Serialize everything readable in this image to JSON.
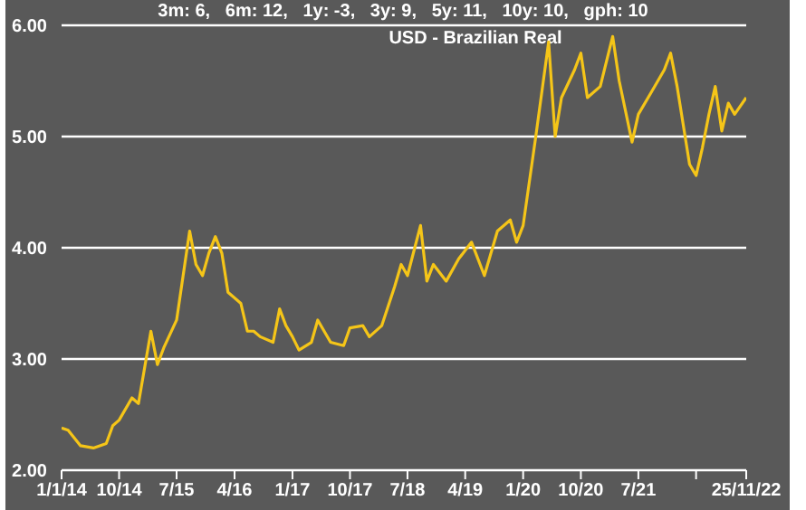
{
  "chart_data": {
    "type": "line",
    "title": "3m: 6,   6m: 12,   1y: -3,   3y: 9,   5y: 11,   10y: 10,   gph: 10",
    "subtitle": "USD - Brazilian Real",
    "x": [
      "2014-01-01",
      "2014-02-01",
      "2014-04-01",
      "2014-06-01",
      "2014-08-01",
      "2014-09-01",
      "2014-10-01",
      "2014-12-01",
      "2015-01-01",
      "2015-03-01",
      "2015-04-01",
      "2015-05-01",
      "2015-07-01",
      "2015-09-01",
      "2015-10-01",
      "2015-11-01",
      "2015-12-01",
      "2016-01-01",
      "2016-02-01",
      "2016-03-01",
      "2016-05-01",
      "2016-06-01",
      "2016-07-01",
      "2016-08-01",
      "2016-10-01",
      "2016-11-01",
      "2016-12-01",
      "2017-01-01",
      "2017-02-01",
      "2017-04-01",
      "2017-05-01",
      "2017-07-01",
      "2017-09-01",
      "2017-10-01",
      "2017-12-01",
      "2018-01-01",
      "2018-03-01",
      "2018-05-01",
      "2018-06-01",
      "2018-07-01",
      "2018-09-01",
      "2018-10-01",
      "2018-11-01",
      "2019-01-01",
      "2019-03-01",
      "2019-05-01",
      "2019-07-01",
      "2019-09-01",
      "2019-11-01",
      "2019-12-01",
      "2020-01-01",
      "2020-03-01",
      "2020-05-01",
      "2020-06-01",
      "2020-07-01",
      "2020-09-01",
      "2020-10-01",
      "2020-11-01",
      "2021-01-01",
      "2021-03-01",
      "2021-04-01",
      "2021-06-01",
      "2021-07-01",
      "2021-09-01",
      "2021-11-01",
      "2021-12-01",
      "2022-01-01",
      "2022-03-01",
      "2022-04-01",
      "2022-05-01",
      "2022-06-01",
      "2022-07-01",
      "2022-08-01",
      "2022-09-01",
      "2022-10-01",
      "2022-11-25"
    ],
    "series": [
      {
        "color": "#f5c518",
        "values": [
          2.38,
          2.36,
          2.22,
          2.2,
          2.24,
          2.4,
          2.45,
          2.65,
          2.6,
          3.25,
          2.95,
          3.1,
          3.35,
          4.15,
          3.85,
          3.75,
          3.95,
          4.1,
          3.95,
          3.6,
          3.5,
          3.25,
          3.25,
          3.2,
          3.15,
          3.45,
          3.3,
          3.2,
          3.08,
          3.15,
          3.35,
          3.15,
          3.12,
          3.28,
          3.3,
          3.2,
          3.3,
          3.65,
          3.85,
          3.75,
          4.2,
          3.7,
          3.85,
          3.7,
          3.9,
          4.05,
          3.75,
          4.15,
          4.25,
          4.05,
          4.2,
          5.0,
          5.85,
          5.0,
          5.35,
          5.6,
          5.75,
          5.35,
          5.45,
          5.9,
          5.5,
          4.95,
          5.2,
          5.4,
          5.6,
          5.75,
          5.45,
          4.75,
          4.65,
          4.9,
          5.2,
          5.45,
          5.05,
          5.3,
          5.2,
          5.35
        ]
      }
    ],
    "xlim": [
      "2014-01-01",
      "2022-11-25"
    ],
    "xticks": [
      {
        "value": "2014-01-01",
        "label": "1/1/14"
      },
      {
        "value": "2014-10-01",
        "label": "10/14"
      },
      {
        "value": "2015-07-01",
        "label": "7/15"
      },
      {
        "value": "2016-04-01",
        "label": "4/16"
      },
      {
        "value": "2017-01-01",
        "label": "1/17"
      },
      {
        "value": "2017-10-01",
        "label": "10/17"
      },
      {
        "value": "2018-07-01",
        "label": "7/18"
      },
      {
        "value": "2019-04-01",
        "label": "4/19"
      },
      {
        "value": "2020-01-01",
        "label": "1/20"
      },
      {
        "value": "2020-10-01",
        "label": "10/20"
      },
      {
        "value": "2021-07-01",
        "label": "7/21"
      },
      {
        "value": "2022-04-01",
        "label": null
      },
      {
        "value": "2022-11-25",
        "label": "25/11/22"
      }
    ],
    "ylim": [
      2,
      6
    ],
    "yticks": [
      {
        "value": 2,
        "label": "2.00"
      },
      {
        "value": 3,
        "label": "3.00"
      },
      {
        "value": 4,
        "label": "4.00"
      },
      {
        "value": 5,
        "label": "5.00"
      },
      {
        "value": 6,
        "label": "6.00"
      }
    ],
    "grid": "y",
    "legend": false,
    "marker": "none",
    "line_style": "solid"
  }
}
